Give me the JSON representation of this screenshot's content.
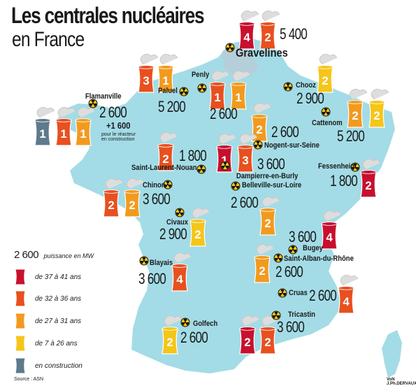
{
  "title": {
    "line1": "Les centrales nucléaires",
    "line2": "en France"
  },
  "colors": {
    "map_fill": "#a3dce6",
    "age_37_41": "#c8102e",
    "age_32_36": "#e8501f",
    "age_27_31": "#f29a1e",
    "age_7_26": "#f5c518",
    "construction": "#5e7a8b",
    "radiation_symbol": "#f5c518"
  },
  "icon": "radiation-symbol-icon",
  "plants": [
    {
      "name": "Gravelines",
      "power": "5 400",
      "towers": [
        {
          "age_class": "age_37_41",
          "reactors": 4
        },
        {
          "age_class": "age_32_36",
          "reactors": 2
        }
      ]
    },
    {
      "name": "Penly",
      "power": "2 600",
      "towers": [
        {
          "age_class": "age_32_36",
          "reactors": 1
        },
        {
          "age_class": "age_27_31",
          "reactors": 1
        }
      ]
    },
    {
      "name": "Paluel",
      "power": "5 200",
      "towers": [
        {
          "age_class": "age_32_36",
          "reactors": 3
        },
        {
          "age_class": "age_27_31",
          "reactors": 1
        }
      ]
    },
    {
      "name": "Flamanville",
      "power": "2 600",
      "power_extra": "+1 600",
      "note": "pour le réacteur\nen construction",
      "towers": [
        {
          "age_class": "construction",
          "reactors": 1
        },
        {
          "age_class": "age_32_36",
          "reactors": 1
        },
        {
          "age_class": "age_27_31",
          "reactors": 1
        }
      ]
    },
    {
      "name": "Chooz",
      "power": "2 900",
      "towers": [
        {
          "age_class": "age_7_26",
          "reactors": 2
        }
      ]
    },
    {
      "name": "Cattenom",
      "power": "5 200",
      "towers": [
        {
          "age_class": "age_27_31",
          "reactors": 2
        },
        {
          "age_class": "age_7_26",
          "reactors": 2
        }
      ]
    },
    {
      "name": "Nogent-sur-Seine",
      "power": "2 600",
      "towers": [
        {
          "age_class": "age_27_31",
          "reactors": 2
        }
      ]
    },
    {
      "name": "Dampierre-en-Burly",
      "power": "3 600",
      "towers": [
        {
          "age_class": "age_37_41",
          "reactors": 1
        },
        {
          "age_class": "age_32_36",
          "reactors": 3
        }
      ]
    },
    {
      "name": "Belleville-sur-Loire",
      "power": "2 600",
      "towers": [
        {
          "age_class": "age_27_31",
          "reactors": 2
        }
      ]
    },
    {
      "name": "Saint-Laurent-Nouan",
      "power": "1 800",
      "towers": [
        {
          "age_class": "age_32_36",
          "reactors": 2
        }
      ]
    },
    {
      "name": "Fessenheim",
      "power": "1 800",
      "towers": [
        {
          "age_class": "age_37_41",
          "reactors": 2
        }
      ]
    },
    {
      "name": "Chinon",
      "power": "3 600",
      "towers": [
        {
          "age_class": "age_32_36",
          "reactors": 2
        },
        {
          "age_class": "age_27_31",
          "reactors": 2
        }
      ]
    },
    {
      "name": "Civaux",
      "power": "2 900",
      "towers": [
        {
          "age_class": "age_7_26",
          "reactors": 2
        }
      ]
    },
    {
      "name": "Bugey",
      "power": "3 600",
      "towers": [
        {
          "age_class": "age_37_41",
          "reactors": 4
        }
      ]
    },
    {
      "name": "Saint-Alban-du-Rhône",
      "power": "2 600",
      "towers": [
        {
          "age_class": "age_27_31",
          "reactors": 2
        }
      ]
    },
    {
      "name": "Blayais",
      "power": "3 600",
      "towers": [
        {
          "age_class": "age_32_36",
          "reactors": 4
        }
      ]
    },
    {
      "name": "Cruas",
      "power": "2 600",
      "towers": [
        {
          "age_class": "age_32_36",
          "reactors": 4
        }
      ]
    },
    {
      "name": "Golfech",
      "power": "2 600",
      "towers": [
        {
          "age_class": "age_7_26",
          "reactors": 2
        }
      ]
    },
    {
      "name": "Tricastin",
      "power": "3 600",
      "towers": [
        {
          "age_class": "age_37_41",
          "reactors": 2
        },
        {
          "age_class": "age_32_36",
          "reactors": 2
        }
      ]
    }
  ],
  "legend": {
    "power_sample": "2 600",
    "power_caption": "puissance en MW",
    "items": [
      {
        "age_class": "age_37_41",
        "label": "de 37 à 41 ans"
      },
      {
        "age_class": "age_32_36",
        "label": "de 32 à 36 ans"
      },
      {
        "age_class": "age_27_31",
        "label": "de 27 à 31 ans"
      },
      {
        "age_class": "age_7_26",
        "label": "de 7 à 26 ans"
      },
      {
        "age_class": "construction",
        "label": "en construction"
      }
    ]
  },
  "source": "Source : ASN",
  "credit": "VoN J.Ph.DERVAUX"
}
